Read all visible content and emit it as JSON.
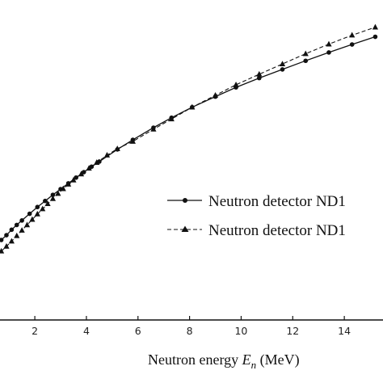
{
  "chart_data": {
    "type": "line",
    "title": "",
    "xlabel": {
      "prefix": "Neutron energy ",
      "symbol": "E",
      "subscript": "n",
      "suffix": " (MeV)"
    },
    "ylabel": "",
    "xlim": [
      0.65,
      15.5
    ],
    "ylim": [
      0.0,
      1.0
    ],
    "xticks": [
      2,
      4,
      6,
      8,
      10,
      12,
      14
    ],
    "grid": false,
    "legend": {
      "placement": "right-middle"
    },
    "series": [
      {
        "name": "Neutron detector ND1",
        "line_style": "solid",
        "marker": "circle",
        "color": "#111111",
        "x": [
          0.7,
          0.9,
          1.1,
          1.3,
          1.5,
          1.8,
          2.1,
          2.4,
          2.7,
          3.0,
          3.3,
          3.6,
          3.9,
          4.2,
          4.5,
          5.2,
          5.8,
          6.6,
          7.3,
          8.1,
          9.0,
          9.8,
          10.7,
          11.6,
          12.5,
          13.4,
          14.3,
          15.2
        ],
        "y": [
          0.25,
          0.265,
          0.282,
          0.297,
          0.311,
          0.332,
          0.353,
          0.372,
          0.391,
          0.409,
          0.427,
          0.445,
          0.462,
          0.479,
          0.495,
          0.533,
          0.563,
          0.601,
          0.632,
          0.665,
          0.698,
          0.727,
          0.756,
          0.783,
          0.81,
          0.836,
          0.861,
          0.885
        ]
      },
      {
        "name": "Neutron detector ND1",
        "line_style": "dashed",
        "marker": "triangle",
        "color": "#111111",
        "x": [
          0.7,
          0.9,
          1.1,
          1.3,
          1.5,
          1.7,
          1.9,
          2.1,
          2.3,
          2.5,
          2.7,
          2.9,
          3.1,
          3.3,
          3.5,
          3.8,
          4.1,
          4.4,
          4.8,
          5.2,
          5.8,
          6.6,
          7.3,
          8.1,
          9.0,
          9.8,
          10.7,
          11.6,
          12.5,
          13.4,
          14.3,
          15.2
        ],
        "y": [
          0.215,
          0.23,
          0.246,
          0.263,
          0.28,
          0.297,
          0.314,
          0.331,
          0.347,
          0.363,
          0.379,
          0.395,
          0.41,
          0.424,
          0.437,
          0.456,
          0.474,
          0.492,
          0.515,
          0.535,
          0.558,
          0.596,
          0.628,
          0.665,
          0.702,
          0.735,
          0.768,
          0.8,
          0.832,
          0.862,
          0.89,
          0.915
        ]
      }
    ]
  }
}
